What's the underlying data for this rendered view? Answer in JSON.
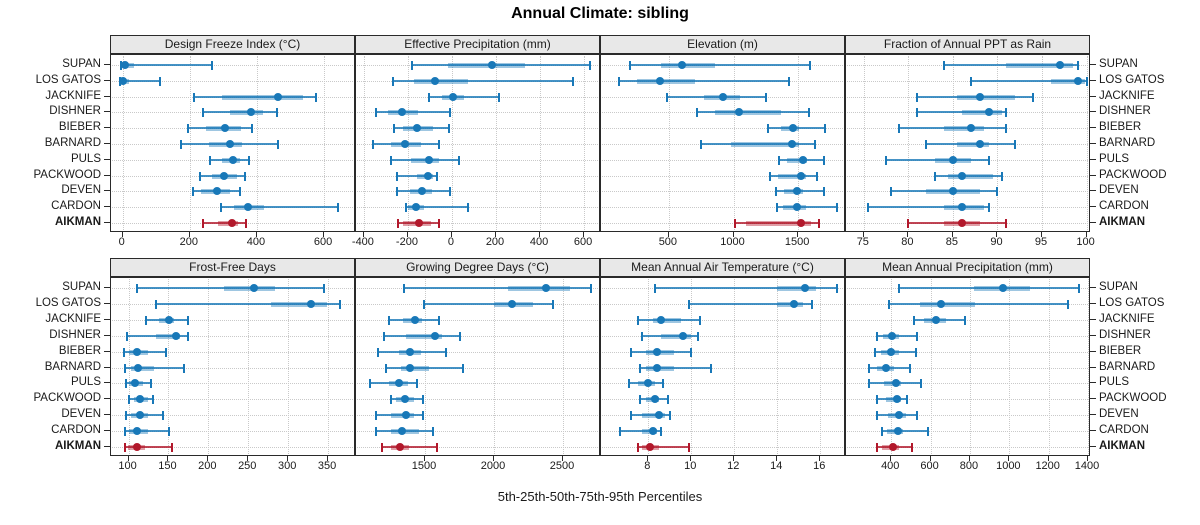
{
  "title": "Annual Climate: sibling",
  "xlabel": "5th-25th-50th-75th-95th Percentiles",
  "colors": {
    "station_blue": "#1878b8",
    "highlight_red": "#b2182b",
    "strip_bg": "#e8e8e8",
    "grid": "#c9c9c9",
    "border": "#2a2a2a"
  },
  "chart_data": {
    "type": "percentile_dotplot",
    "title": "Annual Climate: sibling",
    "xlabel": "5th-25th-50th-75th-95th Percentiles",
    "percentiles": [
      5,
      25,
      50,
      75,
      95
    ],
    "grid": "dotted",
    "legend_position": "none",
    "rows": [
      "SUPAN",
      "LOS GATOS",
      "JACKNIFE",
      "DISHNER",
      "BIEBER",
      "BARNARD",
      "PULS",
      "PACKWOOD",
      "DEVEN",
      "CARDON",
      "AIKMAN"
    ],
    "highlight_row": "AIKMAN",
    "panels": [
      {
        "title": "Design Freeze Index (°C)",
        "grid_row": 0,
        "grid_col": 0,
        "xlim": [
          -35,
          695
        ],
        "xticks": [
          0,
          200,
          400,
          600
        ],
        "series": [
          [
            -5,
            0,
            8,
            35,
            265
          ],
          [
            -8,
            -2,
            2,
            18,
            112
          ],
          [
            213,
            297,
            464,
            538,
            577
          ],
          [
            239,
            321,
            383,
            418,
            459
          ],
          [
            193,
            247,
            306,
            351,
            385
          ],
          [
            173,
            257,
            321,
            356,
            462
          ],
          [
            260,
            297,
            329,
            349,
            375
          ],
          [
            230,
            267,
            301,
            339,
            363
          ],
          [
            208,
            232,
            280,
            321,
            349
          ],
          [
            292,
            331,
            372,
            420,
            641
          ],
          [
            239,
            284,
            326,
            344,
            368
          ]
        ]
      },
      {
        "title": "Effective Precipitation (mm)",
        "grid_row": 0,
        "grid_col": 1,
        "xlim": [
          -436,
          677
        ],
        "xticks": [
          -400,
          -200,
          0,
          200,
          400,
          600
        ],
        "series": [
          [
            -181,
            -20,
            180,
            330,
            627
          ],
          [
            -270,
            -174,
            -77,
            71,
            551
          ],
          [
            -105,
            -45,
            6,
            56,
            213
          ],
          [
            -347,
            -290,
            -225,
            -155,
            -9
          ],
          [
            -264,
            -222,
            -158,
            -87,
            -12
          ],
          [
            -360,
            -279,
            -215,
            -140,
            -60
          ],
          [
            -279,
            -185,
            -105,
            -57,
            30
          ],
          [
            -250,
            -160,
            -110,
            -85,
            -68
          ],
          [
            -250,
            -190,
            -135,
            -90,
            -10
          ],
          [
            -210,
            -198,
            -162,
            -125,
            75
          ],
          [
            -245,
            -222,
            -150,
            -95,
            -58
          ]
        ]
      },
      {
        "title": "Elevation (m)",
        "grid_row": 0,
        "grid_col": 2,
        "xlim": [
          -25,
          1870
        ],
        "xticks": [
          500,
          1000,
          1500
        ],
        "series": [
          [
            200,
            440,
            600,
            860,
            1590
          ],
          [
            115,
            255,
            435,
            705,
            1430
          ],
          [
            485,
            770,
            920,
            1050,
            1255
          ],
          [
            715,
            860,
            1040,
            1370,
            1585
          ],
          [
            1270,
            1370,
            1460,
            1510,
            1705
          ],
          [
            750,
            980,
            1450,
            1510,
            1630
          ],
          [
            1355,
            1410,
            1540,
            1570,
            1700
          ],
          [
            1280,
            1345,
            1520,
            1560,
            1645
          ],
          [
            1330,
            1390,
            1490,
            1540,
            1700
          ],
          [
            1340,
            1380,
            1490,
            1560,
            1800
          ],
          [
            1010,
            1100,
            1520,
            1600,
            1660
          ]
        ]
      },
      {
        "title": "Fraction of Annual PPT as Rain",
        "grid_row": 0,
        "grid_col": 3,
        "xlim": [
          73,
          100.5
        ],
        "xticks": [
          75,
          80,
          85,
          90,
          95,
          100
        ],
        "series": [
          [
            84,
            91,
            97,
            98.5,
            99
          ],
          [
            87,
            96,
            99,
            99.8,
            100
          ],
          [
            81,
            85.5,
            88,
            92,
            94
          ],
          [
            81,
            86,
            89,
            90.5,
            91
          ],
          [
            79,
            84,
            87,
            88.5,
            91
          ],
          [
            82,
            85.5,
            88,
            89,
            92
          ],
          [
            77.5,
            83,
            85,
            87,
            89
          ],
          [
            83,
            84.5,
            86,
            89.5,
            90.5
          ],
          [
            78,
            82,
            85,
            88,
            90
          ],
          [
            75.5,
            84,
            86,
            88.5,
            89
          ],
          [
            80,
            84,
            86,
            88,
            91
          ]
        ]
      },
      {
        "title": "Frost-Free Days",
        "grid_row": 1,
        "grid_col": 0,
        "xlim": [
          78,
          385
        ],
        "xticks": [
          100,
          150,
          200,
          250,
          300,
          350
        ],
        "series": [
          [
            110,
            220,
            257,
            283,
            345
          ],
          [
            134,
            279,
            329,
            349,
            365
          ],
          [
            122,
            138,
            151,
            157,
            175
          ],
          [
            98,
            134,
            160,
            165,
            175
          ],
          [
            94,
            100,
            110,
            125,
            147
          ],
          [
            95,
            103,
            112,
            132,
            169
          ],
          [
            97,
            101,
            108,
            118,
            128
          ],
          [
            101,
            107,
            114,
            124,
            131
          ],
          [
            97,
            103,
            114,
            124,
            143
          ],
          [
            95,
            101,
            111,
            124,
            151
          ],
          [
            96,
            99,
            110,
            120,
            154
          ]
        ]
      },
      {
        "title": "Growing Degree Days (°C)",
        "grid_row": 1,
        "grid_col": 1,
        "xlim": [
          1000,
          2775
        ],
        "xticks": [
          1500,
          2000,
          2500
        ],
        "series": [
          [
            1350,
            2100,
            2375,
            2550,
            2700
          ],
          [
            1495,
            2000,
            2130,
            2280,
            2425
          ],
          [
            1240,
            1340,
            1430,
            1480,
            1600
          ],
          [
            1200,
            1360,
            1570,
            1620,
            1750
          ],
          [
            1160,
            1310,
            1390,
            1470,
            1650
          ],
          [
            1215,
            1325,
            1390,
            1530,
            1775
          ],
          [
            1105,
            1240,
            1310,
            1375,
            1445
          ],
          [
            1250,
            1290,
            1355,
            1420,
            1485
          ],
          [
            1145,
            1250,
            1360,
            1420,
            1485
          ],
          [
            1145,
            1250,
            1335,
            1460,
            1555
          ],
          [
            1190,
            1250,
            1320,
            1385,
            1590
          ]
        ]
      },
      {
        "title": "Mean Annual Air Temperature (°C)",
        "grid_row": 1,
        "grid_col": 2,
        "xlim": [
          5.8,
          17.2
        ],
        "xticks": [
          8,
          10,
          12,
          14,
          16
        ],
        "series": [
          [
            8.3,
            14.0,
            15.3,
            15.8,
            16.8
          ],
          [
            9.9,
            14.0,
            14.8,
            15.2,
            15.6
          ],
          [
            7.5,
            8.2,
            8.6,
            9.5,
            10.4
          ],
          [
            7.7,
            8.6,
            9.6,
            10.0,
            10.3
          ],
          [
            7.2,
            7.9,
            8.4,
            9.2,
            10.0
          ],
          [
            7.6,
            7.9,
            8.4,
            9.2,
            10.9
          ],
          [
            7.1,
            7.5,
            8.0,
            8.3,
            8.7
          ],
          [
            7.6,
            7.9,
            8.3,
            8.5,
            8.9
          ],
          [
            7.2,
            7.7,
            8.5,
            8.8,
            9.0
          ],
          [
            6.7,
            7.7,
            8.2,
            8.4,
            8.6
          ],
          [
            7.5,
            7.7,
            8.1,
            8.5,
            9.9
          ]
        ]
      },
      {
        "title": "Mean Annual Precipitation (mm)",
        "grid_row": 1,
        "grid_col": 3,
        "xlim": [
          170,
          1415
        ],
        "xticks": [
          400,
          600,
          800,
          1000,
          1200,
          1400
        ],
        "series": [
          [
            440,
            820,
            970,
            1105,
            1355
          ],
          [
            390,
            545,
            655,
            825,
            1300
          ],
          [
            515,
            565,
            625,
            680,
            775
          ],
          [
            330,
            360,
            405,
            440,
            530
          ],
          [
            315,
            350,
            400,
            440,
            525
          ],
          [
            285,
            325,
            375,
            415,
            495
          ],
          [
            285,
            365,
            425,
            450,
            550
          ],
          [
            325,
            375,
            430,
            450,
            480
          ],
          [
            330,
            385,
            440,
            475,
            530
          ],
          [
            355,
            380,
            435,
            460,
            585
          ],
          [
            330,
            355,
            410,
            440,
            505
          ]
        ]
      }
    ]
  }
}
